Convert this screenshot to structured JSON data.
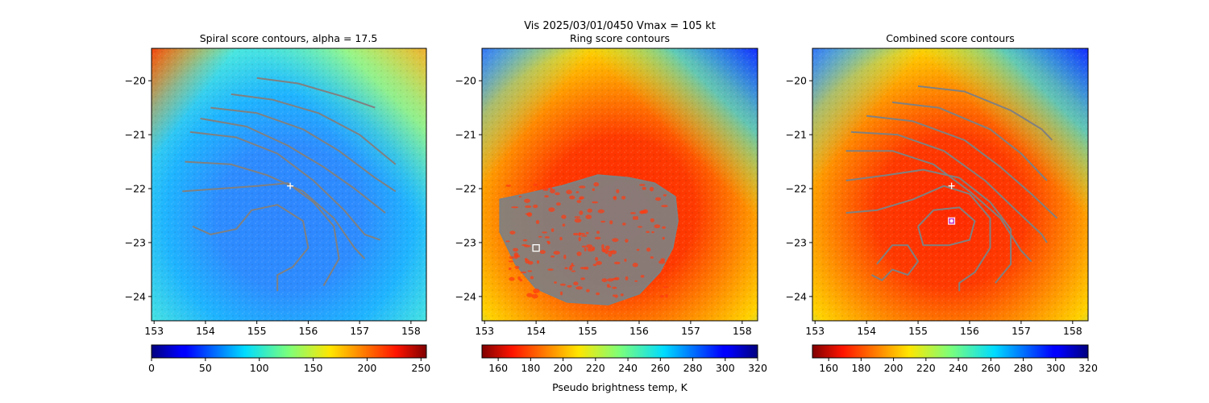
{
  "suptitle": "Vis  2025/03/01/0450    Vmax = 105 kt",
  "colors": {
    "contour": "#808080",
    "background": "#ffffff",
    "marker": "#ffffff",
    "center_marker": "#cc44cc"
  },
  "chart_data": [
    {
      "type": "heatmap",
      "title": "Spiral score contours, alpha = 17.5",
      "colormap": "jet",
      "xlim": [
        152.95,
        158.3
      ],
      "ylim": [
        -24.45,
        -19.4
      ],
      "xticks": [
        153,
        154,
        155,
        156,
        157,
        158
      ],
      "yticks": [
        -20,
        -21,
        -22,
        -23,
        -24
      ],
      "ytick_labels": [
        "−20",
        "−21",
        "−22",
        "−23",
        "−24"
      ],
      "colorbar": {
        "min": 0,
        "max": 255,
        "ticks": [
          0,
          50,
          100,
          150,
          200,
          250
        ],
        "label": "",
        "reversed_palette": false
      },
      "contours": [
        [
          [
            155.0,
            -19.95
          ],
          [
            155.8,
            -20.05
          ],
          [
            156.7,
            -20.3
          ],
          [
            157.3,
            -20.5
          ]
        ],
        [
          [
            154.5,
            -20.25
          ],
          [
            155.3,
            -20.35
          ],
          [
            156.2,
            -20.6
          ],
          [
            157.0,
            -21.0
          ],
          [
            157.7,
            -21.55
          ]
        ],
        [
          [
            154.1,
            -20.5
          ],
          [
            155.0,
            -20.6
          ],
          [
            155.9,
            -20.9
          ],
          [
            156.6,
            -21.3
          ],
          [
            157.3,
            -21.8
          ],
          [
            157.7,
            -22.05
          ]
        ],
        [
          [
            153.9,
            -20.7
          ],
          [
            154.8,
            -20.85
          ],
          [
            155.6,
            -21.2
          ],
          [
            156.3,
            -21.6
          ],
          [
            156.9,
            -22.0
          ],
          [
            157.5,
            -22.45
          ]
        ],
        [
          [
            153.7,
            -20.95
          ],
          [
            154.6,
            -21.05
          ],
          [
            155.4,
            -21.35
          ],
          [
            156.1,
            -21.85
          ],
          [
            156.7,
            -22.4
          ],
          [
            157.1,
            -22.85
          ],
          [
            157.4,
            -22.95
          ]
        ],
        [
          [
            153.6,
            -21.5
          ],
          [
            154.5,
            -21.55
          ],
          [
            155.2,
            -21.75
          ],
          [
            155.9,
            -22.05
          ],
          [
            156.5,
            -22.55
          ],
          [
            156.9,
            -23.1
          ],
          [
            157.1,
            -23.3
          ]
        ],
        [
          [
            153.55,
            -22.05
          ],
          [
            154.3,
            -22.0
          ],
          [
            155.0,
            -21.95
          ],
          [
            155.6,
            -21.9
          ],
          [
            156.1,
            -22.25
          ],
          [
            156.5,
            -22.7
          ],
          [
            156.6,
            -23.3
          ],
          [
            156.3,
            -23.8
          ]
        ],
        [
          [
            153.75,
            -22.7
          ],
          [
            154.1,
            -22.85
          ],
          [
            154.6,
            -22.75
          ],
          [
            154.9,
            -22.4
          ],
          [
            155.4,
            -22.3
          ],
          [
            155.9,
            -22.6
          ],
          [
            156.0,
            -23.1
          ],
          [
            155.7,
            -23.45
          ],
          [
            155.4,
            -23.6
          ],
          [
            155.4,
            -23.9
          ]
        ]
      ],
      "markers": [
        {
          "symbol": "plus",
          "x": 155.65,
          "y": -21.95
        }
      ]
    },
    {
      "type": "heatmap",
      "title": "Ring score contours",
      "colormap": "jet",
      "xlim": [
        152.95,
        158.3
      ],
      "ylim": [
        -24.45,
        -19.4
      ],
      "xticks": [
        153,
        154,
        155,
        156,
        157,
        158
      ],
      "yticks": [
        -20,
        -21,
        -22,
        -23,
        -24
      ],
      "ytick_labels": [
        "−20",
        "−21",
        "−22",
        "−23",
        "−24"
      ],
      "colorbar": {
        "min": 150,
        "max": 320,
        "ticks": [
          160,
          180,
          200,
          220,
          240,
          260,
          280,
          300,
          320
        ],
        "label": "Pseudo brightness temp, K",
        "reversed_palette": true
      },
      "contours": [],
      "filled_region": [
        [
          153.3,
          -22.2
        ],
        [
          153.8,
          -22.1
        ],
        [
          154.5,
          -21.95
        ],
        [
          155.2,
          -21.75
        ],
        [
          155.8,
          -21.8
        ],
        [
          156.3,
          -21.9
        ],
        [
          156.7,
          -22.15
        ],
        [
          156.75,
          -22.6
        ],
        [
          156.65,
          -23.1
        ],
        [
          156.4,
          -23.55
        ],
        [
          156.0,
          -23.95
        ],
        [
          155.4,
          -24.15
        ],
        [
          154.6,
          -24.1
        ],
        [
          154.0,
          -23.85
        ],
        [
          153.6,
          -23.4
        ],
        [
          153.3,
          -22.8
        ]
      ],
      "markers": [
        {
          "symbol": "square",
          "x": 154.0,
          "y": -23.1
        }
      ]
    },
    {
      "type": "heatmap",
      "title": "Combined score contours",
      "colormap": "jet",
      "xlim": [
        152.95,
        158.3
      ],
      "ylim": [
        -24.45,
        -19.4
      ],
      "xticks": [
        153,
        154,
        155,
        156,
        157,
        158
      ],
      "yticks": [
        -20,
        -21,
        -22,
        -23,
        -24
      ],
      "ytick_labels": [
        "−20",
        "−21",
        "−22",
        "−23",
        "−24"
      ],
      "colorbar": {
        "min": 150,
        "max": 320,
        "ticks": [
          160,
          180,
          200,
          220,
          240,
          260,
          280,
          300,
          320
        ],
        "label": "",
        "reversed_palette": true
      },
      "contours": [
        [
          [
            155.0,
            -20.1
          ],
          [
            155.9,
            -20.2
          ],
          [
            156.8,
            -20.55
          ],
          [
            157.4,
            -20.9
          ],
          [
            157.6,
            -21.1
          ]
        ],
        [
          [
            154.5,
            -20.4
          ],
          [
            155.4,
            -20.5
          ],
          [
            156.4,
            -20.9
          ],
          [
            157.0,
            -21.35
          ],
          [
            157.5,
            -21.85
          ]
        ],
        [
          [
            154.0,
            -20.65
          ],
          [
            154.9,
            -20.75
          ],
          [
            155.9,
            -21.1
          ],
          [
            156.6,
            -21.6
          ],
          [
            157.2,
            -22.1
          ],
          [
            157.7,
            -22.55
          ]
        ],
        [
          [
            153.7,
            -20.95
          ],
          [
            154.6,
            -21.0
          ],
          [
            155.5,
            -21.3
          ],
          [
            156.3,
            -21.85
          ],
          [
            156.9,
            -22.4
          ],
          [
            157.4,
            -22.85
          ],
          [
            157.5,
            -23.0
          ]
        ],
        [
          [
            153.6,
            -21.3
          ],
          [
            154.5,
            -21.3
          ],
          [
            155.3,
            -21.55
          ],
          [
            156.0,
            -22.05
          ],
          [
            156.6,
            -22.55
          ],
          [
            157.0,
            -23.15
          ],
          [
            157.2,
            -23.35
          ]
        ],
        [
          [
            153.6,
            -21.85
          ],
          [
            154.4,
            -21.75
          ],
          [
            155.1,
            -21.65
          ],
          [
            155.8,
            -21.8
          ],
          [
            156.4,
            -22.25
          ],
          [
            156.8,
            -22.75
          ],
          [
            156.8,
            -23.4
          ],
          [
            156.5,
            -23.75
          ]
        ],
        [
          [
            153.6,
            -22.45
          ],
          [
            154.2,
            -22.4
          ],
          [
            154.9,
            -22.2
          ],
          [
            155.5,
            -21.95
          ],
          [
            156.0,
            -22.1
          ],
          [
            156.4,
            -22.55
          ],
          [
            156.4,
            -23.1
          ],
          [
            156.1,
            -23.55
          ],
          [
            155.8,
            -23.75
          ],
          [
            155.8,
            -23.9
          ]
        ],
        [
          [
            155.0,
            -22.7
          ],
          [
            155.3,
            -22.4
          ],
          [
            155.8,
            -22.35
          ],
          [
            156.1,
            -22.6
          ],
          [
            156.0,
            -22.95
          ],
          [
            155.6,
            -23.05
          ],
          [
            155.1,
            -23.05
          ],
          [
            155.0,
            -22.7
          ]
        ],
        [
          [
            154.2,
            -23.4
          ],
          [
            154.5,
            -23.05
          ],
          [
            154.8,
            -23.05
          ],
          [
            155.0,
            -23.35
          ],
          [
            154.8,
            -23.6
          ],
          [
            154.5,
            -23.5
          ],
          [
            154.3,
            -23.7
          ],
          [
            154.1,
            -23.6
          ]
        ]
      ],
      "markers": [
        {
          "symbol": "plus",
          "x": 155.65,
          "y": -21.95
        },
        {
          "symbol": "circle",
          "x": 155.65,
          "y": -22.6
        }
      ]
    }
  ]
}
